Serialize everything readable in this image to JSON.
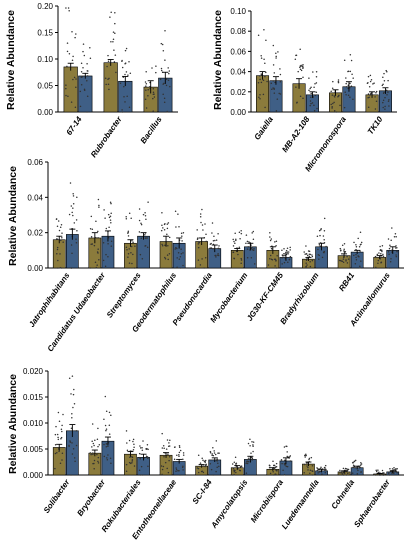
{
  "colors": {
    "series1": "#8B7B3C",
    "series2": "#3F5F86"
  },
  "chart_data": [
    {
      "type": "bar",
      "ylabel": "Relative Abundance",
      "ylim": [
        0,
        0.2
      ],
      "yticks": [
        "0.00",
        "0.05",
        "0.10",
        "0.15",
        "0.20"
      ],
      "categories": [
        "67-14",
        "Rubrobacter",
        "Bacillus"
      ],
      "series": [
        {
          "values": [
            0.085,
            0.093,
            0.047
          ],
          "errors": [
            0.007,
            0.006,
            0.012
          ]
        },
        {
          "values": [
            0.068,
            0.058,
            0.064
          ],
          "errors": [
            0.005,
            0.009,
            0.011
          ]
        }
      ]
    },
    {
      "type": "bar",
      "ylabel": "Relative Abundance",
      "ylim": [
        0,
        0.1
      ],
      "yticks": [
        "0.00",
        "0.02",
        "0.04",
        "0.06",
        "0.08",
        "0.10"
      ],
      "categories": [
        "Gaiella",
        "MB-A2-108",
        "Micromonospora",
        "TK10"
      ],
      "series": [
        {
          "values": [
            0.036,
            0.028,
            0.019,
            0.017
          ],
          "errors": [
            0.004,
            0.005,
            0.003,
            0.003
          ]
        },
        {
          "values": [
            0.031,
            0.017,
            0.025,
            0.021
          ],
          "errors": [
            0.004,
            0.003,
            0.005,
            0.003
          ]
        }
      ]
    },
    {
      "type": "bar",
      "ylabel": "Relative Abundance",
      "ylim": [
        0,
        0.06
      ],
      "yticks": [
        "0.00",
        "0.02",
        "0.04",
        "0.06"
      ],
      "categories": [
        "Jatrophihabitans",
        "Candidatus Udaeobacter",
        "Streptomyces",
        "Geodermatophilus",
        "Pseudonocardia",
        "Mycobacterium",
        "JG30-KF-CM45",
        "Bradyrhizobium",
        "RB41",
        "Actinoallomurus"
      ],
      "series": [
        {
          "values": [
            0.016,
            0.017,
            0.014,
            0.015,
            0.015,
            0.01,
            0.01,
            0.005,
            0.007,
            0.006
          ],
          "errors": [
            0.002,
            0.003,
            0.002,
            0.003,
            0.002,
            0.001,
            0.002,
            0.001,
            0.001,
            0.001
          ]
        },
        {
          "values": [
            0.019,
            0.018,
            0.018,
            0.014,
            0.011,
            0.012,
            0.006,
            0.012,
            0.009,
            0.01
          ],
          "errors": [
            0.003,
            0.003,
            0.002,
            0.003,
            0.002,
            0.002,
            0.002,
            0.002,
            0.001,
            0.002
          ]
        }
      ]
    },
    {
      "type": "bar",
      "ylabel": "Relative Abundance",
      "ylim": [
        0,
        0.02
      ],
      "yticks": [
        "0.000",
        "0.005",
        "0.010",
        "0.015",
        "0.020"
      ],
      "categories": [
        "Solibacter",
        "Bryobacter",
        "Rokubacteriales",
        "Entotheonellaceae",
        "SC-I-84",
        "Amycolatopsis",
        "Microbispora",
        "Luedemannella",
        "Cohnella",
        "Sphaerobacter"
      ],
      "series": [
        {
          "values": [
            0.0053,
            0.0042,
            0.004,
            0.0038,
            0.0017,
            0.0014,
            0.0011,
            0.0021,
            0.0006,
            0.0002
          ],
          "errors": [
            0.0006,
            0.0006,
            0.0005,
            0.0005,
            0.0003,
            0.0004,
            0.0003,
            0.0004,
            0.0002,
            0.0001
          ]
        },
        {
          "values": [
            0.0085,
            0.0065,
            0.0034,
            0.0026,
            0.0029,
            0.003,
            0.0027,
            0.0008,
            0.0014,
            0.0006
          ],
          "errors": [
            0.0012,
            0.0008,
            0.0006,
            0.0004,
            0.0004,
            0.0006,
            0.0006,
            0.0003,
            0.0003,
            0.0002
          ]
        }
      ]
    }
  ]
}
